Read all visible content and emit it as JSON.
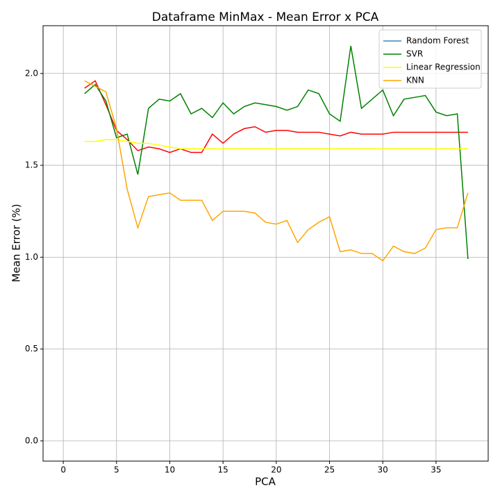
{
  "chart_data": {
    "type": "line",
    "title": "Dataframe MinMax - Mean Error x PCA",
    "x_label": "PCA",
    "y_label": "Mean Error (%)",
    "x": [
      2,
      3,
      4,
      5,
      6,
      7,
      8,
      9,
      10,
      11,
      12,
      13,
      14,
      15,
      16,
      17,
      18,
      19,
      20,
      21,
      22,
      23,
      24,
      25,
      26,
      27,
      28,
      29,
      30,
      31,
      32,
      33,
      34,
      35,
      36,
      37,
      38
    ],
    "series": [
      {
        "name": "Random Forest",
        "color": "red",
        "legend_color": "#3a87b8",
        "values": [
          1.92,
          1.96,
          1.83,
          1.69,
          1.64,
          1.58,
          1.6,
          1.59,
          1.57,
          1.59,
          1.57,
          1.57,
          1.67,
          1.62,
          1.67,
          1.7,
          1.71,
          1.68,
          1.69,
          1.69,
          1.68,
          1.68,
          1.68,
          1.67,
          1.66,
          1.68,
          1.67,
          1.67,
          1.67,
          1.68,
          1.68,
          1.68,
          1.68,
          1.68,
          1.68,
          1.68,
          1.68
        ]
      },
      {
        "name": "SVR",
        "color": "green",
        "values": [
          1.89,
          1.94,
          1.85,
          1.65,
          1.67,
          1.45,
          1.81,
          1.86,
          1.85,
          1.89,
          1.78,
          1.81,
          1.76,
          1.84,
          1.78,
          1.82,
          1.84,
          1.83,
          1.82,
          1.8,
          1.82,
          1.91,
          1.89,
          1.78,
          1.74,
          2.15,
          1.81,
          1.86,
          1.91,
          1.77,
          1.86,
          1.87,
          1.88,
          1.79,
          1.77,
          1.78,
          0.99
        ]
      },
      {
        "name": "Linear Regression",
        "color": "yellow",
        "values": [
          1.63,
          1.63,
          1.64,
          1.64,
          1.63,
          1.62,
          1.62,
          1.61,
          1.6,
          1.59,
          1.59,
          1.59,
          1.59,
          1.59,
          1.59,
          1.59,
          1.59,
          1.59,
          1.59,
          1.59,
          1.59,
          1.59,
          1.59,
          1.59,
          1.59,
          1.59,
          1.59,
          1.59,
          1.59,
          1.59,
          1.59,
          1.59,
          1.59,
          1.59,
          1.59,
          1.59,
          1.59
        ]
      },
      {
        "name": "KNN",
        "color": "orange",
        "values": [
          1.96,
          1.93,
          1.9,
          1.7,
          1.37,
          1.16,
          1.33,
          1.34,
          1.35,
          1.31,
          1.31,
          1.31,
          1.2,
          1.25,
          1.25,
          1.25,
          1.24,
          1.19,
          1.18,
          1.2,
          1.08,
          1.15,
          1.19,
          1.22,
          1.03,
          1.04,
          1.02,
          1.02,
          0.98,
          1.06,
          1.03,
          1.02,
          1.05,
          1.15,
          1.16,
          1.16,
          1.35
        ]
      }
    ],
    "xlim": [
      -1.9,
      39.9
    ],
    "xticks": [
      0,
      5,
      10,
      15,
      20,
      25,
      30,
      35
    ],
    "ylim": [
      -0.11,
      2.26
    ],
    "yticks": [
      {
        "value": 0,
        "label": "0.0"
      },
      0.5,
      {
        "value": 1,
        "label": "1.0"
      },
      1.5,
      {
        "value": 2,
        "label": "2.0"
      }
    ],
    "grid": true,
    "legend": "upper right"
  }
}
